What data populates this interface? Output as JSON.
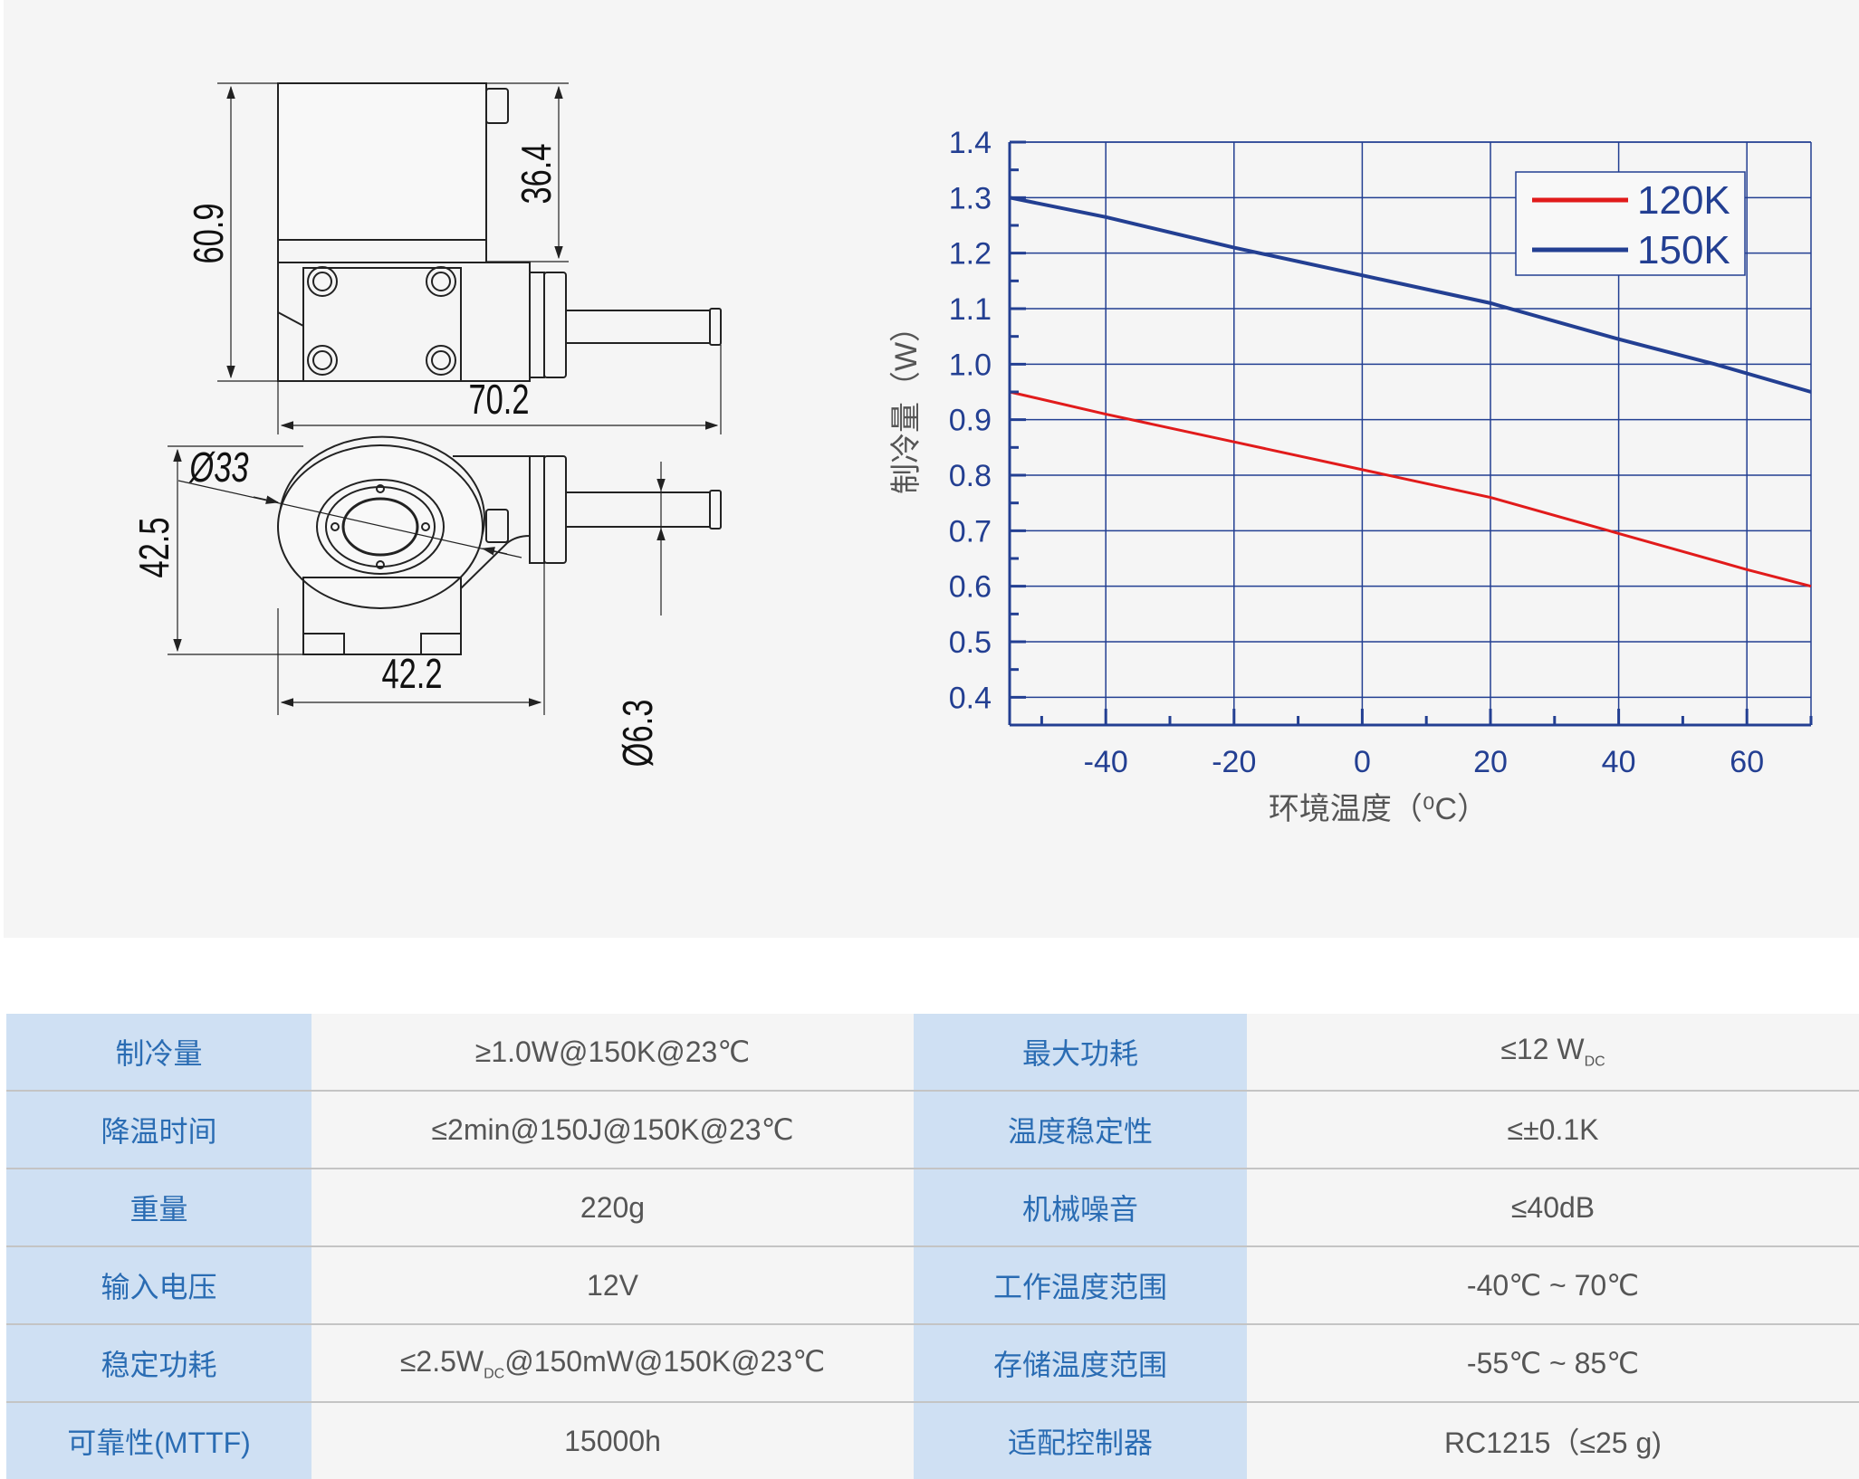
{
  "drawing": {
    "dimensions": [
      "60.9",
      "36.4",
      "70.2",
      "Ø33",
      "42.5",
      "42.2",
      "Ø6.3"
    ]
  },
  "chart_data": {
    "type": "line",
    "xlabel": "环境温度（⁰C）",
    "ylabel": "制冷量（W）",
    "xlim": [
      -55,
      70
    ],
    "ylim": [
      0.35,
      1.4
    ],
    "xticks": [
      -40,
      -20,
      0,
      20,
      40,
      60
    ],
    "yticks": [
      0.4,
      0.5,
      0.6,
      0.7,
      0.8,
      0.9,
      1.0,
      1.1,
      1.2,
      1.3,
      1.4
    ],
    "ytick_labels": [
      "0.4",
      "0.5",
      "0.6",
      "0.7",
      "0.8",
      "0.9",
      "1.0",
      "1.1",
      "1.2",
      "1.3",
      "1.4"
    ],
    "grid": true,
    "legend": "top-right",
    "series": [
      {
        "name": "120K",
        "color": "#e11b1b",
        "x": [
          -55,
          -40,
          -20,
          0,
          20,
          40,
          60,
          70
        ],
        "y": [
          0.95,
          0.91,
          0.86,
          0.81,
          0.76,
          0.695,
          0.63,
          0.6
        ]
      },
      {
        "name": "150K",
        "color": "#233f92",
        "x": [
          -55,
          -40,
          -20,
          0,
          20,
          40,
          55,
          70
        ],
        "y": [
          1.3,
          1.265,
          1.21,
          1.16,
          1.11,
          1.045,
          1.0,
          0.95
        ]
      }
    ],
    "axis_color": "#233f92"
  },
  "specs": [
    {
      "k1": "制冷量",
      "v1": "≥1.0W@150K@23℃",
      "k2": "最大功耗",
      "v2": "≤12 W",
      "v2_sub": "DC"
    },
    {
      "k1": "降温时间",
      "v1": "≤2min@150J@150K@23℃",
      "k2": "温度稳定性",
      "v2": "≤±0.1K"
    },
    {
      "k1": "重量",
      "v1": "220g",
      "k2": "机械噪音",
      "v2": "≤40dB"
    },
    {
      "k1": "输入电压",
      "v1": "12V",
      "k2": "工作温度范围",
      "v2": "-40℃ ~ 70℃"
    },
    {
      "k1": "稳定功耗",
      "v1a": "≤2.5W",
      "v1_sub": "DC",
      "v1b": "@150mW@150K@23℃",
      "k2": "存储温度范围",
      "v2": "-55℃ ~ 85℃"
    },
    {
      "k1": "可靠性(MTTF)",
      "v1": "15000h",
      "k2": "适配控制器",
      "v2": "RC1215（≤25 g)"
    }
  ]
}
